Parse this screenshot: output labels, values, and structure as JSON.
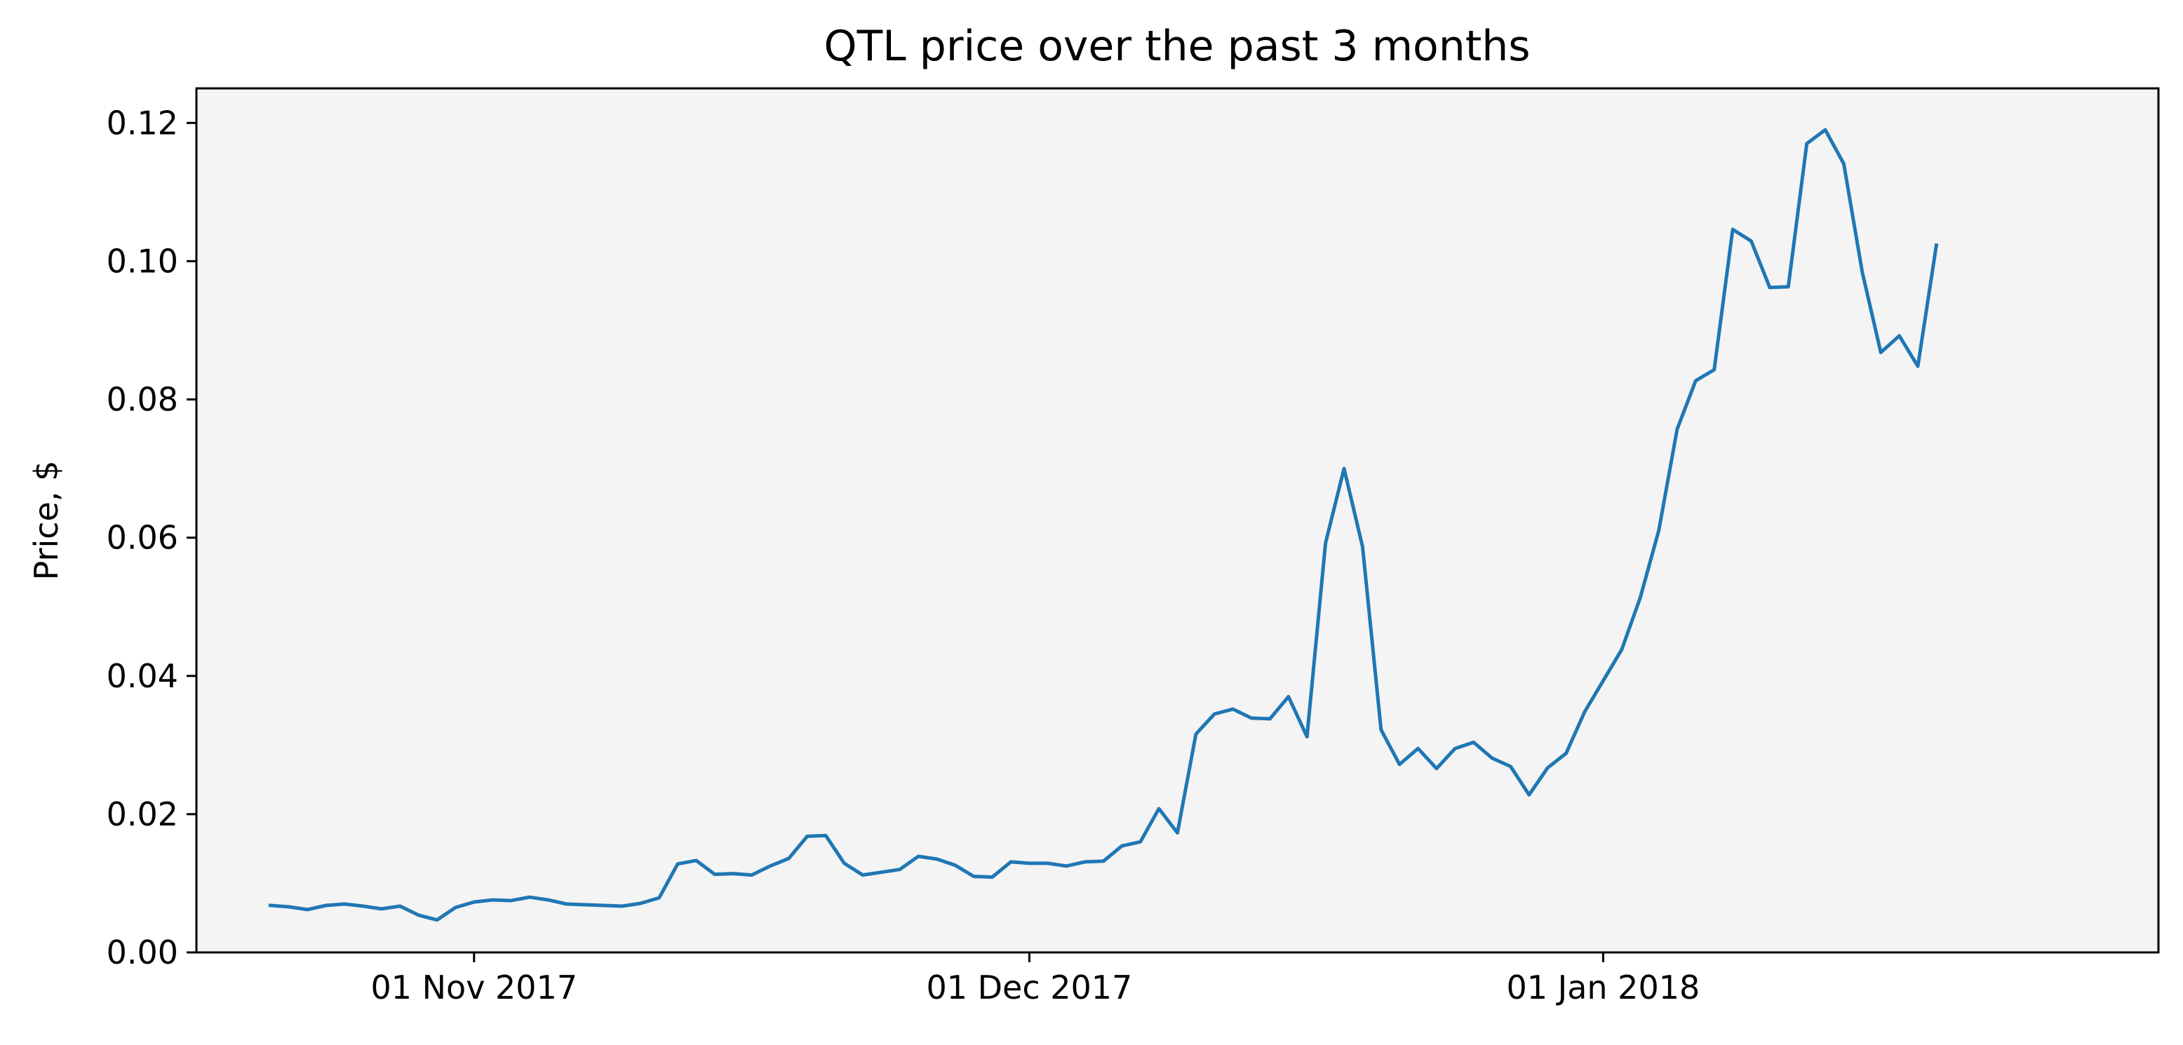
{
  "chart_data": {
    "type": "line",
    "title": "QTL price over the past 3 months",
    "xlabel": "",
    "ylabel": "Price, $",
    "x_tick_labels": [
      {
        "date": "2017-11-01",
        "label": "01 Nov 2017"
      },
      {
        "date": "2017-12-01",
        "label": "01 Dec 2017"
      },
      {
        "date": "2018-01-01",
        "label": "01 Jan 2018"
      }
    ],
    "xlim": [
      "2017-10-17",
      "2018-01-31"
    ],
    "y_ticks": [
      0.0,
      0.02,
      0.04,
      0.06,
      0.08,
      0.1,
      0.12
    ],
    "y_tick_labels": [
      "0.00",
      "0.02",
      "0.04",
      "0.06",
      "0.08",
      "0.10",
      "0.12"
    ],
    "ylim": [
      0.0,
      0.125
    ],
    "grid": false,
    "legend": "none",
    "colors": {
      "line": "#1f77b4",
      "plot_background": "#f4f4f4",
      "figure_background": "#ffffff",
      "axes": "#000000"
    },
    "series": [
      {
        "points": [
          [
            "2017-10-21",
            0.0068
          ],
          [
            "2017-10-22",
            0.0066
          ],
          [
            "2017-10-23",
            0.0062
          ],
          [
            "2017-10-24",
            0.0068
          ],
          [
            "2017-10-25",
            0.007
          ],
          [
            "2017-10-26",
            0.0067
          ],
          [
            "2017-10-27",
            0.0063
          ],
          [
            "2017-10-28",
            0.0067
          ],
          [
            "2017-10-29",
            0.0054
          ],
          [
            "2017-10-30",
            0.0047
          ],
          [
            "2017-10-31",
            0.0065
          ],
          [
            "2017-11-01",
            0.0073
          ],
          [
            "2017-11-02",
            0.0076
          ],
          [
            "2017-11-03",
            0.0075
          ],
          [
            "2017-11-04",
            0.008
          ],
          [
            "2017-11-05",
            0.0076
          ],
          [
            "2017-11-06",
            0.007
          ],
          [
            "2017-11-07",
            0.0069
          ],
          [
            "2017-11-08",
            0.0068
          ],
          [
            "2017-11-09",
            0.0067
          ],
          [
            "2017-11-10",
            0.0071
          ],
          [
            "2017-11-11",
            0.0079
          ],
          [
            "2017-11-12",
            0.0128
          ],
          [
            "2017-11-13",
            0.0133
          ],
          [
            "2017-11-14",
            0.0113
          ],
          [
            "2017-11-15",
            0.0114
          ],
          [
            "2017-11-16",
            0.0112
          ],
          [
            "2017-11-17",
            0.0125
          ],
          [
            "2017-11-18",
            0.0136
          ],
          [
            "2017-11-19",
            0.0168
          ],
          [
            "2017-11-20",
            0.0169
          ],
          [
            "2017-11-21",
            0.0129
          ],
          [
            "2017-11-22",
            0.0112
          ],
          [
            "2017-11-23",
            0.0116
          ],
          [
            "2017-11-24",
            0.012
          ],
          [
            "2017-11-25",
            0.0139
          ],
          [
            "2017-11-26",
            0.0135
          ],
          [
            "2017-11-27",
            0.0126
          ],
          [
            "2017-11-28",
            0.011
          ],
          [
            "2017-11-29",
            0.0109
          ],
          [
            "2017-11-30",
            0.0131
          ],
          [
            "2017-12-01",
            0.0129
          ],
          [
            "2017-12-02",
            0.0129
          ],
          [
            "2017-12-03",
            0.0125
          ],
          [
            "2017-12-04",
            0.0131
          ],
          [
            "2017-12-05",
            0.0132
          ],
          [
            "2017-12-06",
            0.0154
          ],
          [
            "2017-12-07",
            0.016
          ],
          [
            "2017-12-08",
            0.0208
          ],
          [
            "2017-12-09",
            0.0173
          ],
          [
            "2017-12-10",
            0.0316
          ],
          [
            "2017-12-11",
            0.0345
          ],
          [
            "2017-12-12",
            0.0352
          ],
          [
            "2017-12-13",
            0.0339
          ],
          [
            "2017-12-14",
            0.0338
          ],
          [
            "2017-12-15",
            0.037
          ],
          [
            "2017-12-16",
            0.0312
          ],
          [
            "2017-12-17",
            0.0592
          ],
          [
            "2017-12-18",
            0.07
          ],
          [
            "2017-12-19",
            0.0587
          ],
          [
            "2017-12-20",
            0.0322
          ],
          [
            "2017-12-21",
            0.0272
          ],
          [
            "2017-12-22",
            0.0295
          ],
          [
            "2017-12-23",
            0.0266
          ],
          [
            "2017-12-24",
            0.0295
          ],
          [
            "2017-12-25",
            0.0304
          ],
          [
            "2017-12-26",
            0.0281
          ],
          [
            "2017-12-27",
            0.0269
          ],
          [
            "2017-12-28",
            0.0228
          ],
          [
            "2017-12-29",
            0.0267
          ],
          [
            "2017-12-30",
            0.0288
          ],
          [
            "2017-12-31",
            0.0348
          ],
          [
            "2018-01-01",
            0.0393
          ],
          [
            "2018-01-02",
            0.0438
          ],
          [
            "2018-01-03",
            0.0513
          ],
          [
            "2018-01-04",
            0.061
          ],
          [
            "2018-01-05",
            0.0757
          ],
          [
            "2018-01-06",
            0.0827
          ],
          [
            "2018-01-07",
            0.0843
          ],
          [
            "2018-01-08",
            0.1046
          ],
          [
            "2018-01-09",
            0.1029
          ],
          [
            "2018-01-10",
            0.0962
          ],
          [
            "2018-01-11",
            0.0963
          ],
          [
            "2018-01-12",
            0.117
          ],
          [
            "2018-01-13",
            0.119
          ],
          [
            "2018-01-14",
            0.1141
          ],
          [
            "2018-01-15",
            0.0984
          ],
          [
            "2018-01-16",
            0.0868
          ],
          [
            "2018-01-17",
            0.0892
          ],
          [
            "2018-01-18",
            0.0848
          ],
          [
            "2018-01-19",
            0.1023
          ]
        ]
      }
    ]
  }
}
